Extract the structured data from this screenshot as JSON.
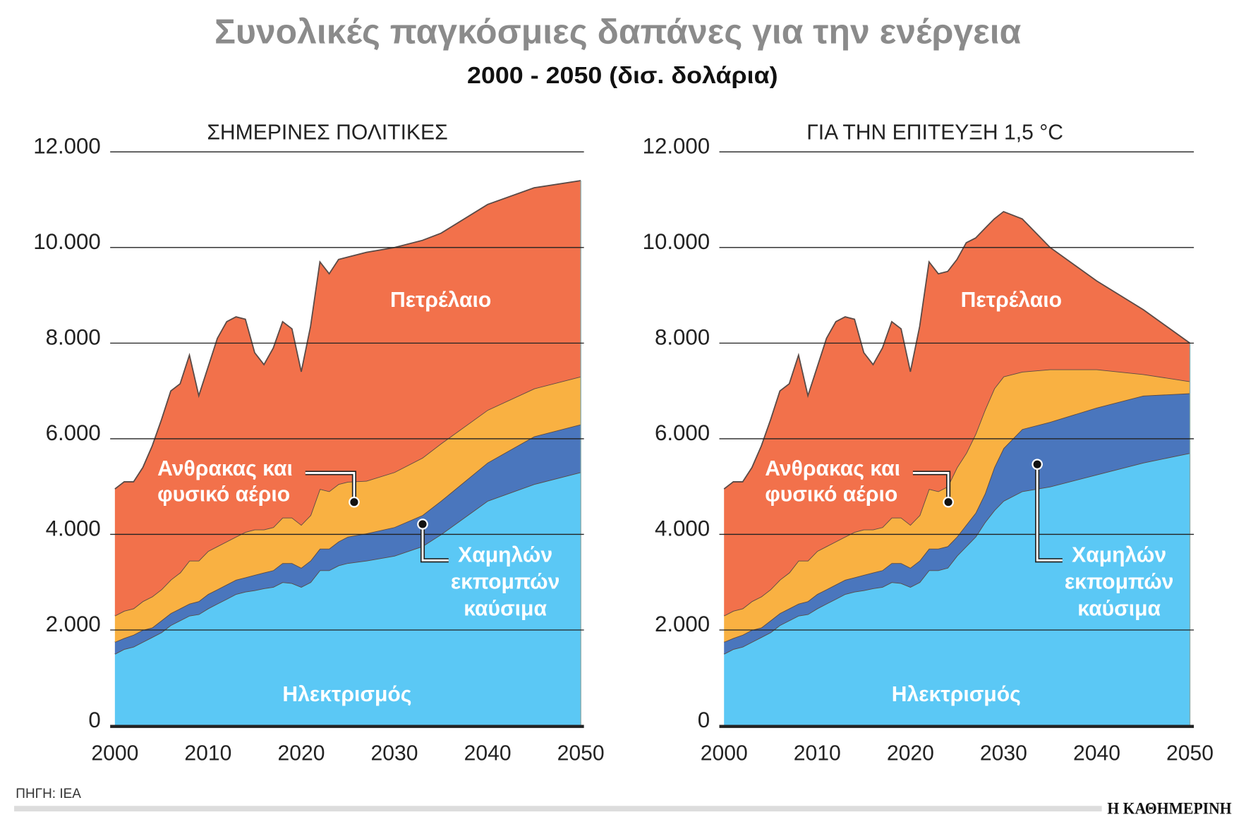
{
  "title": "Συνολικές παγκόσμιες δαπάνες για την ενέργεια",
  "subtitle": "2000 - 2050 (δισ. δολάρια)",
  "source": "ΠΗΓΗ: IEA",
  "logo": "Η ΚΑΘΗΜΕΡΙΝΗ",
  "colors": {
    "electricity": "#5BC8F5",
    "low_emission": "#4A76BD",
    "coal_gas": "#F9B142",
    "oil": "#F2714B",
    "outline": "#5a4a46"
  },
  "chart_data": [
    {
      "type": "area",
      "stacked": true,
      "title": "ΣΗΜΕΡΙΝΕΣ ΠΟΛΙΤΙΚΕΣ",
      "ylim": [
        0,
        12000
      ],
      "xlim": [
        2000,
        2050
      ],
      "yticks": [
        "0",
        "2.000",
        "4.000",
        "6.000",
        "8.000",
        "10.000",
        "12.000"
      ],
      "ytick_values": [
        0,
        2000,
        4000,
        6000,
        8000,
        10000,
        12000
      ],
      "xticks": [
        "2000",
        "2010",
        "2020",
        "2030",
        "2040",
        "2050"
      ],
      "xtick_values": [
        2000,
        2010,
        2020,
        2030,
        2040,
        2050
      ],
      "grid": true,
      "x": [
        2000,
        2001,
        2002,
        2003,
        2004,
        2005,
        2006,
        2007,
        2008,
        2009,
        2010,
        2011,
        2012,
        2013,
        2014,
        2015,
        2016,
        2017,
        2018,
        2019,
        2020,
        2021,
        2022,
        2023,
        2024,
        2025,
        2027,
        2030,
        2033,
        2035,
        2040,
        2045,
        2050
      ],
      "series": [
        {
          "key": "electricity",
          "name": "Ηλεκτρισμός",
          "values": [
            1500,
            1600,
            1650,
            1750,
            1850,
            1950,
            2100,
            2200,
            2300,
            2330,
            2450,
            2550,
            2650,
            2750,
            2800,
            2830,
            2870,
            2900,
            3000,
            2980,
            2900,
            3000,
            3250,
            3250,
            3350,
            3400,
            3450,
            3550,
            3750,
            4000,
            4700,
            5050,
            5300
          ]
        },
        {
          "key": "low_emission",
          "name": [
            "Χαμηλών",
            "εκπομπών",
            "καύσιμα"
          ],
          "values": [
            250,
            230,
            250,
            250,
            200,
            250,
            250,
            250,
            250,
            270,
            300,
            300,
            300,
            300,
            300,
            320,
            330,
            350,
            400,
            420,
            400,
            450,
            450,
            450,
            500,
            550,
            570,
            600,
            650,
            700,
            800,
            1000,
            1000
          ]
        },
        {
          "key": "coal_gas",
          "name": [
            "Ανθρακας και",
            "φυσικό αέριο"
          ],
          "values": [
            550,
            570,
            550,
            600,
            650,
            650,
            700,
            750,
            900,
            850,
            900,
            900,
            900,
            900,
            950,
            950,
            900,
            900,
            950,
            950,
            900,
            950,
            1250,
            1200,
            1200,
            1150,
            1100,
            1150,
            1200,
            1200,
            1100,
            1000,
            1000
          ]
        },
        {
          "key": "oil",
          "name": "Πετρέλαιο",
          "values": [
            2650,
            2700,
            2650,
            2800,
            3150,
            3550,
            3950,
            3950,
            4300,
            3450,
            3850,
            4350,
            4600,
            4600,
            4450,
            3700,
            3450,
            3750,
            4100,
            3950,
            3200,
            3950,
            4750,
            4550,
            4700,
            4700,
            4780,
            4700,
            4550,
            4400,
            4300,
            4200,
            4100
          ]
        }
      ]
    },
    {
      "type": "area",
      "stacked": true,
      "title": "ΓΙΑ ΤΗΝ ΕΠΙΤΕΥΞΗ 1,5 °C",
      "ylim": [
        0,
        12000
      ],
      "xlim": [
        2000,
        2050
      ],
      "yticks": [
        "0",
        "2.000",
        "4.000",
        "6.000",
        "8.000",
        "10.000",
        "12.000"
      ],
      "ytick_values": [
        0,
        2000,
        4000,
        6000,
        8000,
        10000,
        12000
      ],
      "xticks": [
        "2000",
        "2010",
        "2020",
        "2030",
        "2040",
        "2050"
      ],
      "xtick_values": [
        2000,
        2010,
        2020,
        2030,
        2040,
        2050
      ],
      "grid": true,
      "x": [
        2000,
        2001,
        2002,
        2003,
        2004,
        2005,
        2006,
        2007,
        2008,
        2009,
        2010,
        2011,
        2012,
        2013,
        2014,
        2015,
        2016,
        2017,
        2018,
        2019,
        2020,
        2021,
        2022,
        2023,
        2024,
        2025,
        2026,
        2027,
        2028,
        2029,
        2030,
        2032,
        2035,
        2040,
        2045,
        2050
      ],
      "series": [
        {
          "key": "electricity",
          "name": "Ηλεκτρισμός",
          "values": [
            1500,
            1600,
            1650,
            1750,
            1850,
            1950,
            2100,
            2200,
            2300,
            2330,
            2450,
            2550,
            2650,
            2750,
            2800,
            2830,
            2870,
            2900,
            3000,
            2980,
            2900,
            3000,
            3250,
            3250,
            3300,
            3550,
            3750,
            3950,
            4250,
            4500,
            4700,
            4900,
            5000,
            5250,
            5500,
            5700
          ]
        },
        {
          "key": "low_emission",
          "name": [
            "Χαμηλών",
            "εκπομπών",
            "καύσιμα"
          ],
          "values": [
            250,
            230,
            250,
            250,
            200,
            250,
            250,
            250,
            250,
            270,
            300,
            300,
            300,
            300,
            300,
            320,
            330,
            350,
            400,
            420,
            400,
            450,
            450,
            450,
            450,
            400,
            450,
            500,
            600,
            900,
            1100,
            1300,
            1350,
            1400,
            1400,
            1250
          ]
        },
        {
          "key": "coal_gas",
          "name": [
            "Ανθρακας και",
            "φυσικό αέριο"
          ],
          "values": [
            550,
            570,
            550,
            600,
            650,
            650,
            700,
            750,
            900,
            850,
            900,
            900,
            900,
            900,
            950,
            950,
            900,
            900,
            950,
            950,
            900,
            950,
            1250,
            1200,
            1250,
            1450,
            1500,
            1650,
            1750,
            1650,
            1500,
            1200,
            1100,
            800,
            450,
            250
          ]
        },
        {
          "key": "oil",
          "name": "Πετρέλαιο",
          "values": [
            2650,
            2700,
            2650,
            2800,
            3150,
            3550,
            3950,
            3950,
            4300,
            3450,
            3850,
            4350,
            4600,
            4600,
            4450,
            3700,
            3450,
            3750,
            4100,
            3950,
            3200,
            3950,
            4750,
            4550,
            4500,
            4350,
            4400,
            4100,
            3800,
            3550,
            3450,
            3200,
            2550,
            1850,
            1350,
            800
          ]
        }
      ]
    }
  ]
}
